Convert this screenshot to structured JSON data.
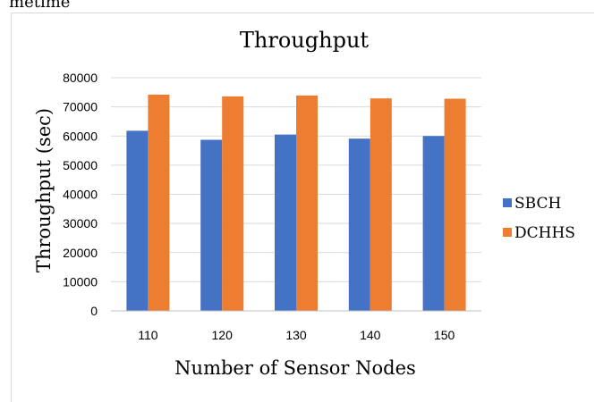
{
  "page": {
    "top_text": "metime"
  },
  "colors": {
    "sbch": "#4472c4",
    "dchhs": "#ed7d31",
    "grid": "#d9d9d9",
    "axis": "#bfbfbf"
  },
  "chart_data": {
    "type": "bar",
    "title": "Throughput",
    "xlabel": "Number of Sensor Nodes",
    "ylabel": "Throughput  (sec)",
    "categories": [
      "110",
      "120",
      "130",
      "140",
      "150"
    ],
    "ylim": [
      0,
      80000
    ],
    "yticks": [
      "0",
      "10000",
      "20000",
      "30000",
      "40000",
      "50000",
      "60000",
      "70000",
      "80000"
    ],
    "grid": true,
    "legend_position": "right",
    "series": [
      {
        "name": "SBCH",
        "values": [
          61800,
          58700,
          60500,
          59100,
          60000
        ]
      },
      {
        "name": "DCHHS",
        "values": [
          74200,
          73600,
          73900,
          72900,
          72800
        ]
      }
    ]
  }
}
